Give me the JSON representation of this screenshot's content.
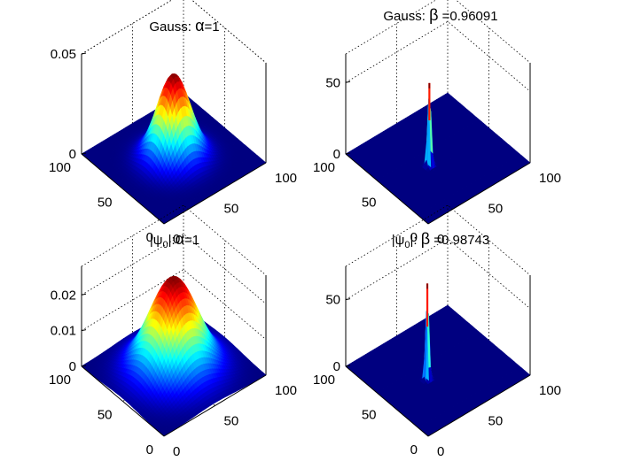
{
  "chart_data": [
    {
      "type": "surface",
      "title": {
        "prefix": "Gauss: ",
        "symbol": "α",
        "suffix": "=1"
      },
      "xlim": [
        0,
        100
      ],
      "ylim": [
        0,
        100
      ],
      "zlim": [
        0,
        0.05
      ],
      "x_ticks": [
        "0",
        "50",
        "100"
      ],
      "y_ticks": [
        "0",
        "50",
        "100"
      ],
      "z_ticks": [
        {
          "label": "0",
          "value": 0
        },
        {
          "label": "0.05",
          "value": 0.05
        }
      ],
      "peak": 0.042,
      "peak_x": 50,
      "peak_y": 50,
      "spread": 13,
      "colormap": "jet",
      "grid": true
    },
    {
      "type": "surface",
      "title": {
        "prefix": "Gauss:  ",
        "symbol": "β",
        "suffix": " =0.96091"
      },
      "xlim": [
        0,
        100
      ],
      "ylim": [
        0,
        100
      ],
      "zlim": [
        0,
        70
      ],
      "x_ticks": [
        "0",
        "50",
        "100"
      ],
      "y_ticks": [
        "0",
        "50",
        "100"
      ],
      "z_ticks": [
        {
          "label": "0",
          "value": 0
        },
        {
          "label": "50",
          "value": 50
        }
      ],
      "peak": 58,
      "peak_x": 52,
      "peak_y": 60,
      "spread": 1.4,
      "colormap": "jet",
      "grid": true
    },
    {
      "type": "surface",
      "title": {
        "prefix": "|ψ",
        "sub": "0",
        "mid": "|:",
        "symbol": "α",
        "suffix": "=1"
      },
      "xlim": [
        0,
        100
      ],
      "ylim": [
        0,
        100
      ],
      "zlim": [
        0,
        0.028
      ],
      "x_ticks": [
        "0",
        "50",
        "100"
      ],
      "y_ticks": [
        "0",
        "50",
        "100"
      ],
      "z_ticks": [
        {
          "label": "0",
          "value": 0
        },
        {
          "label": "0.01",
          "value": 0.01
        },
        {
          "label": "0.02",
          "value": 0.02
        }
      ],
      "peak": 0.026,
      "peak_x": 50,
      "peak_y": 50,
      "spread": 19,
      "colormap": "jet",
      "grid": true
    },
    {
      "type": "surface",
      "title": {
        "prefix": "|ψ",
        "sub": "0",
        "mid": "|:  ",
        "symbol": "β",
        "suffix": " =0.98743"
      },
      "xlim": [
        0,
        100
      ],
      "ylim": [
        0,
        100
      ],
      "zlim": [
        0,
        75
      ],
      "x_ticks": [
        "0",
        "50",
        "100"
      ],
      "y_ticks": [
        "0",
        "50",
        "100"
      ],
      "z_ticks": [
        {
          "label": "0",
          "value": 0
        },
        {
          "label": "50",
          "value": 50
        }
      ],
      "peak": 72,
      "peak_x": 52,
      "peak_y": 62,
      "spread": 1.3,
      "colormap": "jet",
      "grid": true
    }
  ]
}
